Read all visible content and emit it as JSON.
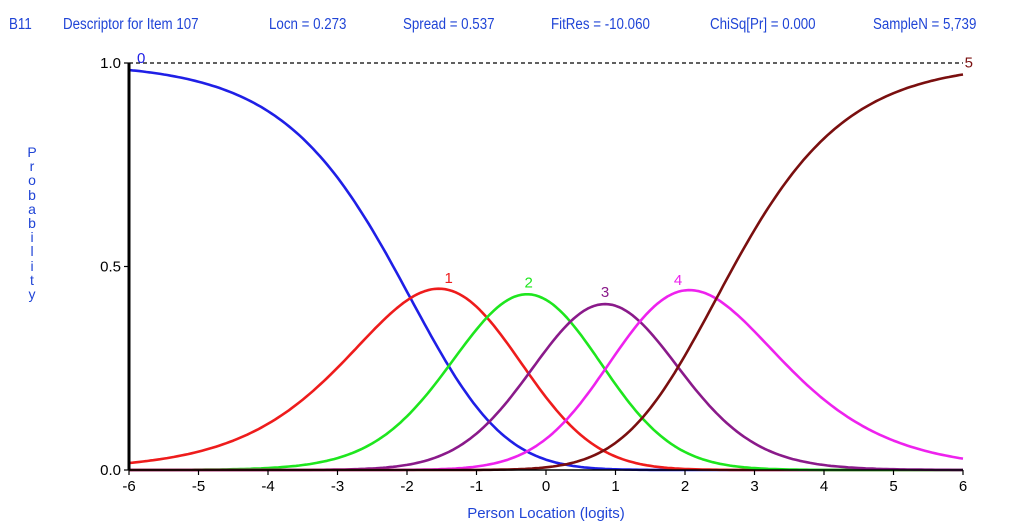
{
  "header": {
    "code": "B11",
    "descriptor": "Descriptor for Item 107",
    "locn": "Locn = 0.273",
    "spread": "Spread = 0.537",
    "fitres": "FitRes = -10.060",
    "chisq": "ChiSq[Pr] = 0.000",
    "samplen": "SampleN = 5,739",
    "color": "#1f44d6"
  },
  "chart_data": {
    "type": "line",
    "xlabel": "Person Location (logits)",
    "ylabel": "Probability",
    "xlim": [
      -6,
      6
    ],
    "ylim": [
      0,
      1
    ],
    "xticks": [
      -6,
      -5,
      -4,
      -3,
      -2,
      -1,
      0,
      1,
      2,
      3,
      4,
      5,
      6
    ],
    "yticks": [
      {
        "value": 0.0,
        "label": "0.0"
      },
      {
        "value": 0.5,
        "label": "0.5"
      },
      {
        "value": 1.0,
        "label": "1.0"
      }
    ],
    "reference_line": {
      "y": 1.0,
      "style": "dashed"
    },
    "thresholds": [
      -1.95,
      -0.85,
      0.35,
      1.35,
      2.45
    ],
    "series": [
      {
        "name": "0",
        "color": "#1f1fe6"
      },
      {
        "name": "1",
        "color": "#ee1c1c"
      },
      {
        "name": "2",
        "color": "#1ee61e"
      },
      {
        "name": "3",
        "color": "#8a1a8a"
      },
      {
        "name": "4",
        "color": "#ee22ee"
      },
      {
        "name": "5",
        "color": "#7a0f0f"
      }
    ]
  }
}
